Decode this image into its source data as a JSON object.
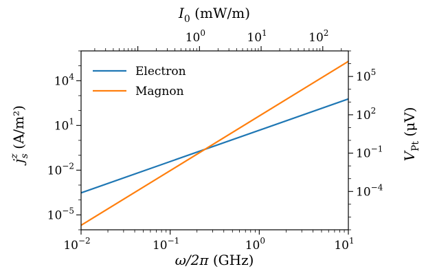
{
  "chart_data": {
    "type": "line",
    "xlabel": "ω/2π (GHz)",
    "ylabel": "j_s^z (A/m²)",
    "top_xlabel": "I₀ (mW/m)",
    "right_ylabel": "V_Pt (μV)",
    "x_scale": "log",
    "y_scale": "log",
    "xlim": [
      0.01,
      10
    ],
    "ylim": [
      1e-06,
      1000000
    ],
    "x_ticks": [
      {
        "exp": "-2",
        "value": 0.01
      },
      {
        "exp": "-1",
        "value": 0.1
      },
      {
        "exp": "0",
        "value": 1
      },
      {
        "exp": "1",
        "value": 10
      }
    ],
    "y_ticks": [
      {
        "exp": "-5",
        "value": 1e-05
      },
      {
        "exp": "-2",
        "value": 0.01
      },
      {
        "exp": "1",
        "value": 10
      },
      {
        "exp": "4",
        "value": 10000
      }
    ],
    "top_x_ticks": [
      {
        "exp": "0",
        "value": 1
      },
      {
        "exp": "1",
        "value": 10
      },
      {
        "exp": "2",
        "value": 100
      }
    ],
    "top_xlim": [
      0.012,
      260
    ],
    "right_y_ticks": [
      {
        "exp": "-4",
        "value": 0.0001
      },
      {
        "exp": "-1",
        "value": 0.1
      },
      {
        "exp": "2",
        "value": 100
      },
      {
        "exp": "5",
        "value": 100000
      }
    ],
    "right_ylim": [
      1e-07,
      10000000
    ],
    "legend_position": "top-left",
    "grid": false,
    "series": [
      {
        "name": "Electron",
        "color": "#1f77b4",
        "x": [
          0.01,
          10
        ],
        "y": [
          0.0003,
          600
        ]
      },
      {
        "name": "Magnon",
        "color": "#ff7f0e",
        "x": [
          0.01,
          10
        ],
        "y": [
          2e-06,
          200000
        ]
      }
    ]
  }
}
